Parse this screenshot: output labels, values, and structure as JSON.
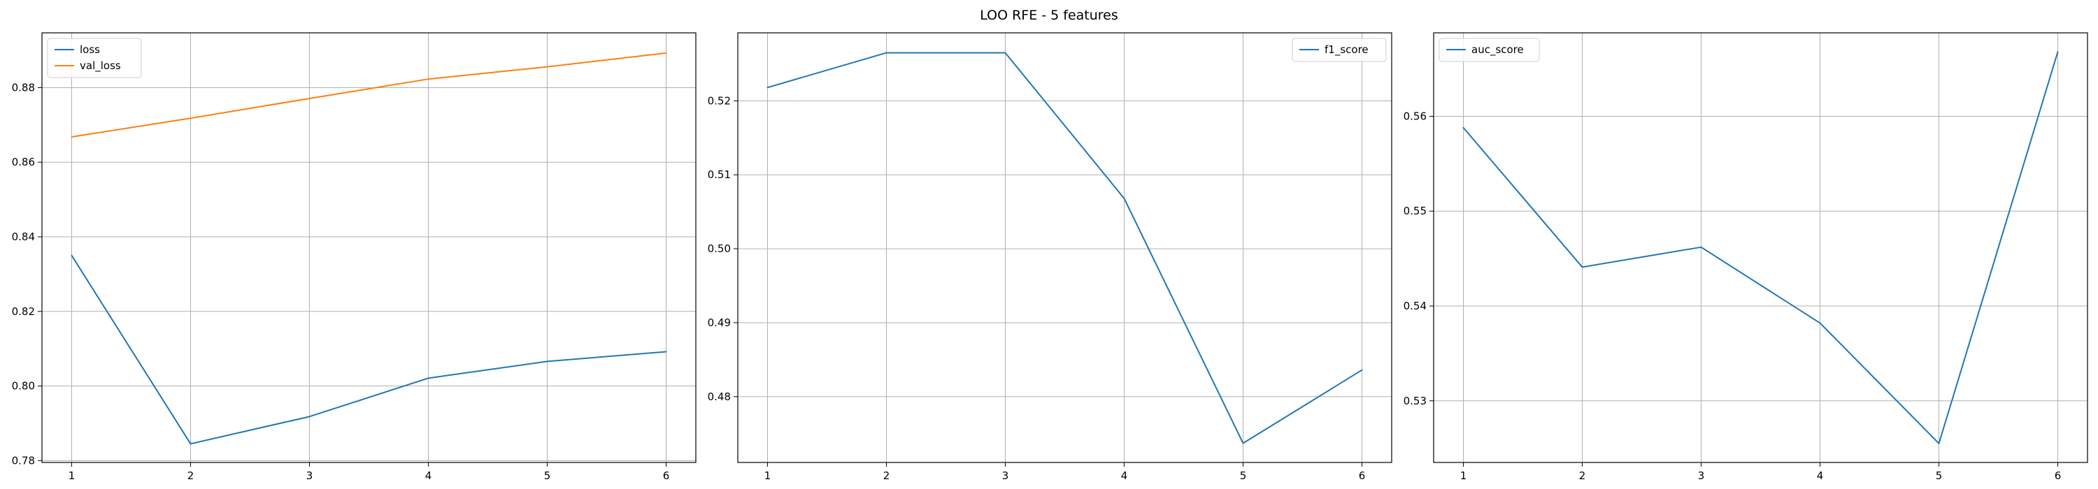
{
  "figure": {
    "title": "LOO RFE - 5 features"
  },
  "chart_data": [
    {
      "type": "line",
      "x": [
        1,
        2,
        3,
        4,
        5,
        6
      ],
      "series": [
        {
          "name": "loss",
          "color": "#1f77b4",
          "values": [
            0.835,
            0.7845,
            0.7918,
            0.8021,
            0.8066,
            0.8092
          ]
        },
        {
          "name": "val_loss",
          "color": "#ff7f0e",
          "values": [
            0.8668,
            0.8718,
            0.8771,
            0.8823,
            0.8856,
            0.8893
          ]
        }
      ],
      "xticks": [
        1,
        2,
        3,
        4,
        5,
        6
      ],
      "yticks": [
        0.78,
        0.8,
        0.82,
        0.84,
        0.86,
        0.88
      ],
      "xlim": [
        0.75,
        6.25
      ],
      "ylim": [
        0.7795,
        0.8947
      ],
      "grid": true,
      "legend": "upper-left",
      "title": "",
      "xlabel": "",
      "ylabel": ""
    },
    {
      "type": "line",
      "x": [
        1,
        2,
        3,
        4,
        5,
        6
      ],
      "series": [
        {
          "name": "f1_score",
          "color": "#1f77b4",
          "values": [
            0.5218,
            0.5265,
            0.5265,
            0.5068,
            0.4737,
            0.4836
          ]
        }
      ],
      "xticks": [
        1,
        2,
        3,
        4,
        5,
        6
      ],
      "yticks": [
        0.48,
        0.49,
        0.5,
        0.51,
        0.52
      ],
      "xlim": [
        0.75,
        6.25
      ],
      "ylim": [
        0.4711,
        0.5292
      ],
      "grid": true,
      "legend": "upper-right",
      "title": "",
      "xlabel": "",
      "ylabel": ""
    },
    {
      "type": "line",
      "x": [
        1,
        2,
        3,
        4,
        5,
        6
      ],
      "series": [
        {
          "name": "auc_score",
          "color": "#1f77b4",
          "values": [
            0.5588,
            0.5441,
            0.5462,
            0.5382,
            0.5255,
            0.5668
          ]
        }
      ],
      "xticks": [
        1,
        2,
        3,
        4,
        5,
        6
      ],
      "yticks": [
        0.53,
        0.54,
        0.55,
        0.56
      ],
      "xlim": [
        0.75,
        6.25
      ],
      "ylim": [
        0.5235,
        0.5688
      ],
      "grid": true,
      "legend": "upper-left",
      "title": "",
      "xlabel": "",
      "ylabel": ""
    }
  ]
}
